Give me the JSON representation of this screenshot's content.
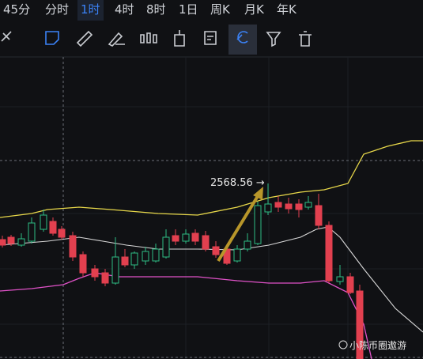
{
  "tabs": [
    "45分",
    "分时",
    "1时",
    "4时",
    "8时",
    "1日",
    "周K",
    "月K",
    "年K"
  ],
  "annotation": "2568.56 →",
  "watermark": "小陈币圈遨游"
}
